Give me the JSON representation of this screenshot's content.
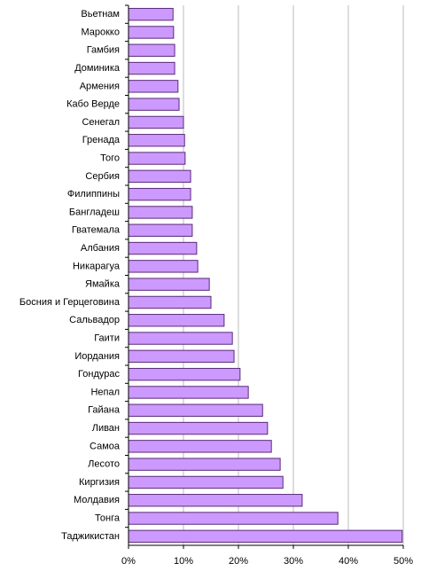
{
  "chart_data": {
    "type": "hbar",
    "categories": [
      "Вьетнам",
      "Марокко",
      "Гамбия",
      "Доминика",
      "Армения",
      "Кабо Верде",
      "Сенегал",
      "Гренада",
      "Того",
      "Сербия",
      "Филиппины",
      "Бангладеш",
      "Гватемала",
      "Албания",
      "Никарагуа",
      "Ямайка",
      "Босния и Герцеговина",
      "Сальвадор",
      "Гаити",
      "Иордания",
      "Гондурас",
      "Непал",
      "Гайана",
      "Ливан",
      "Самоа",
      "Лесото",
      "Киргизия",
      "Молдавия",
      "Тонга",
      "Таджикистан"
    ],
    "values": [
      8.1,
      8.2,
      8.4,
      8.4,
      9.0,
      9.2,
      10.0,
      10.2,
      10.3,
      11.3,
      11.3,
      11.6,
      11.6,
      12.4,
      12.6,
      14.7,
      15.0,
      17.4,
      18.9,
      19.2,
      20.3,
      21.8,
      24.4,
      25.3,
      26.0,
      27.6,
      28.1,
      31.6,
      38.1,
      49.8
    ],
    "color": "#cc99ff",
    "xlim": [
      0,
      50
    ],
    "xticks": [
      {
        "value": 0,
        "label": "0%"
      },
      {
        "value": 10,
        "label": "10%"
      },
      {
        "value": 20,
        "label": "20%"
      },
      {
        "value": 30,
        "label": "30%"
      },
      {
        "value": 40,
        "label": "40%"
      },
      {
        "value": 50,
        "label": "50%"
      }
    ],
    "grid": true
  }
}
